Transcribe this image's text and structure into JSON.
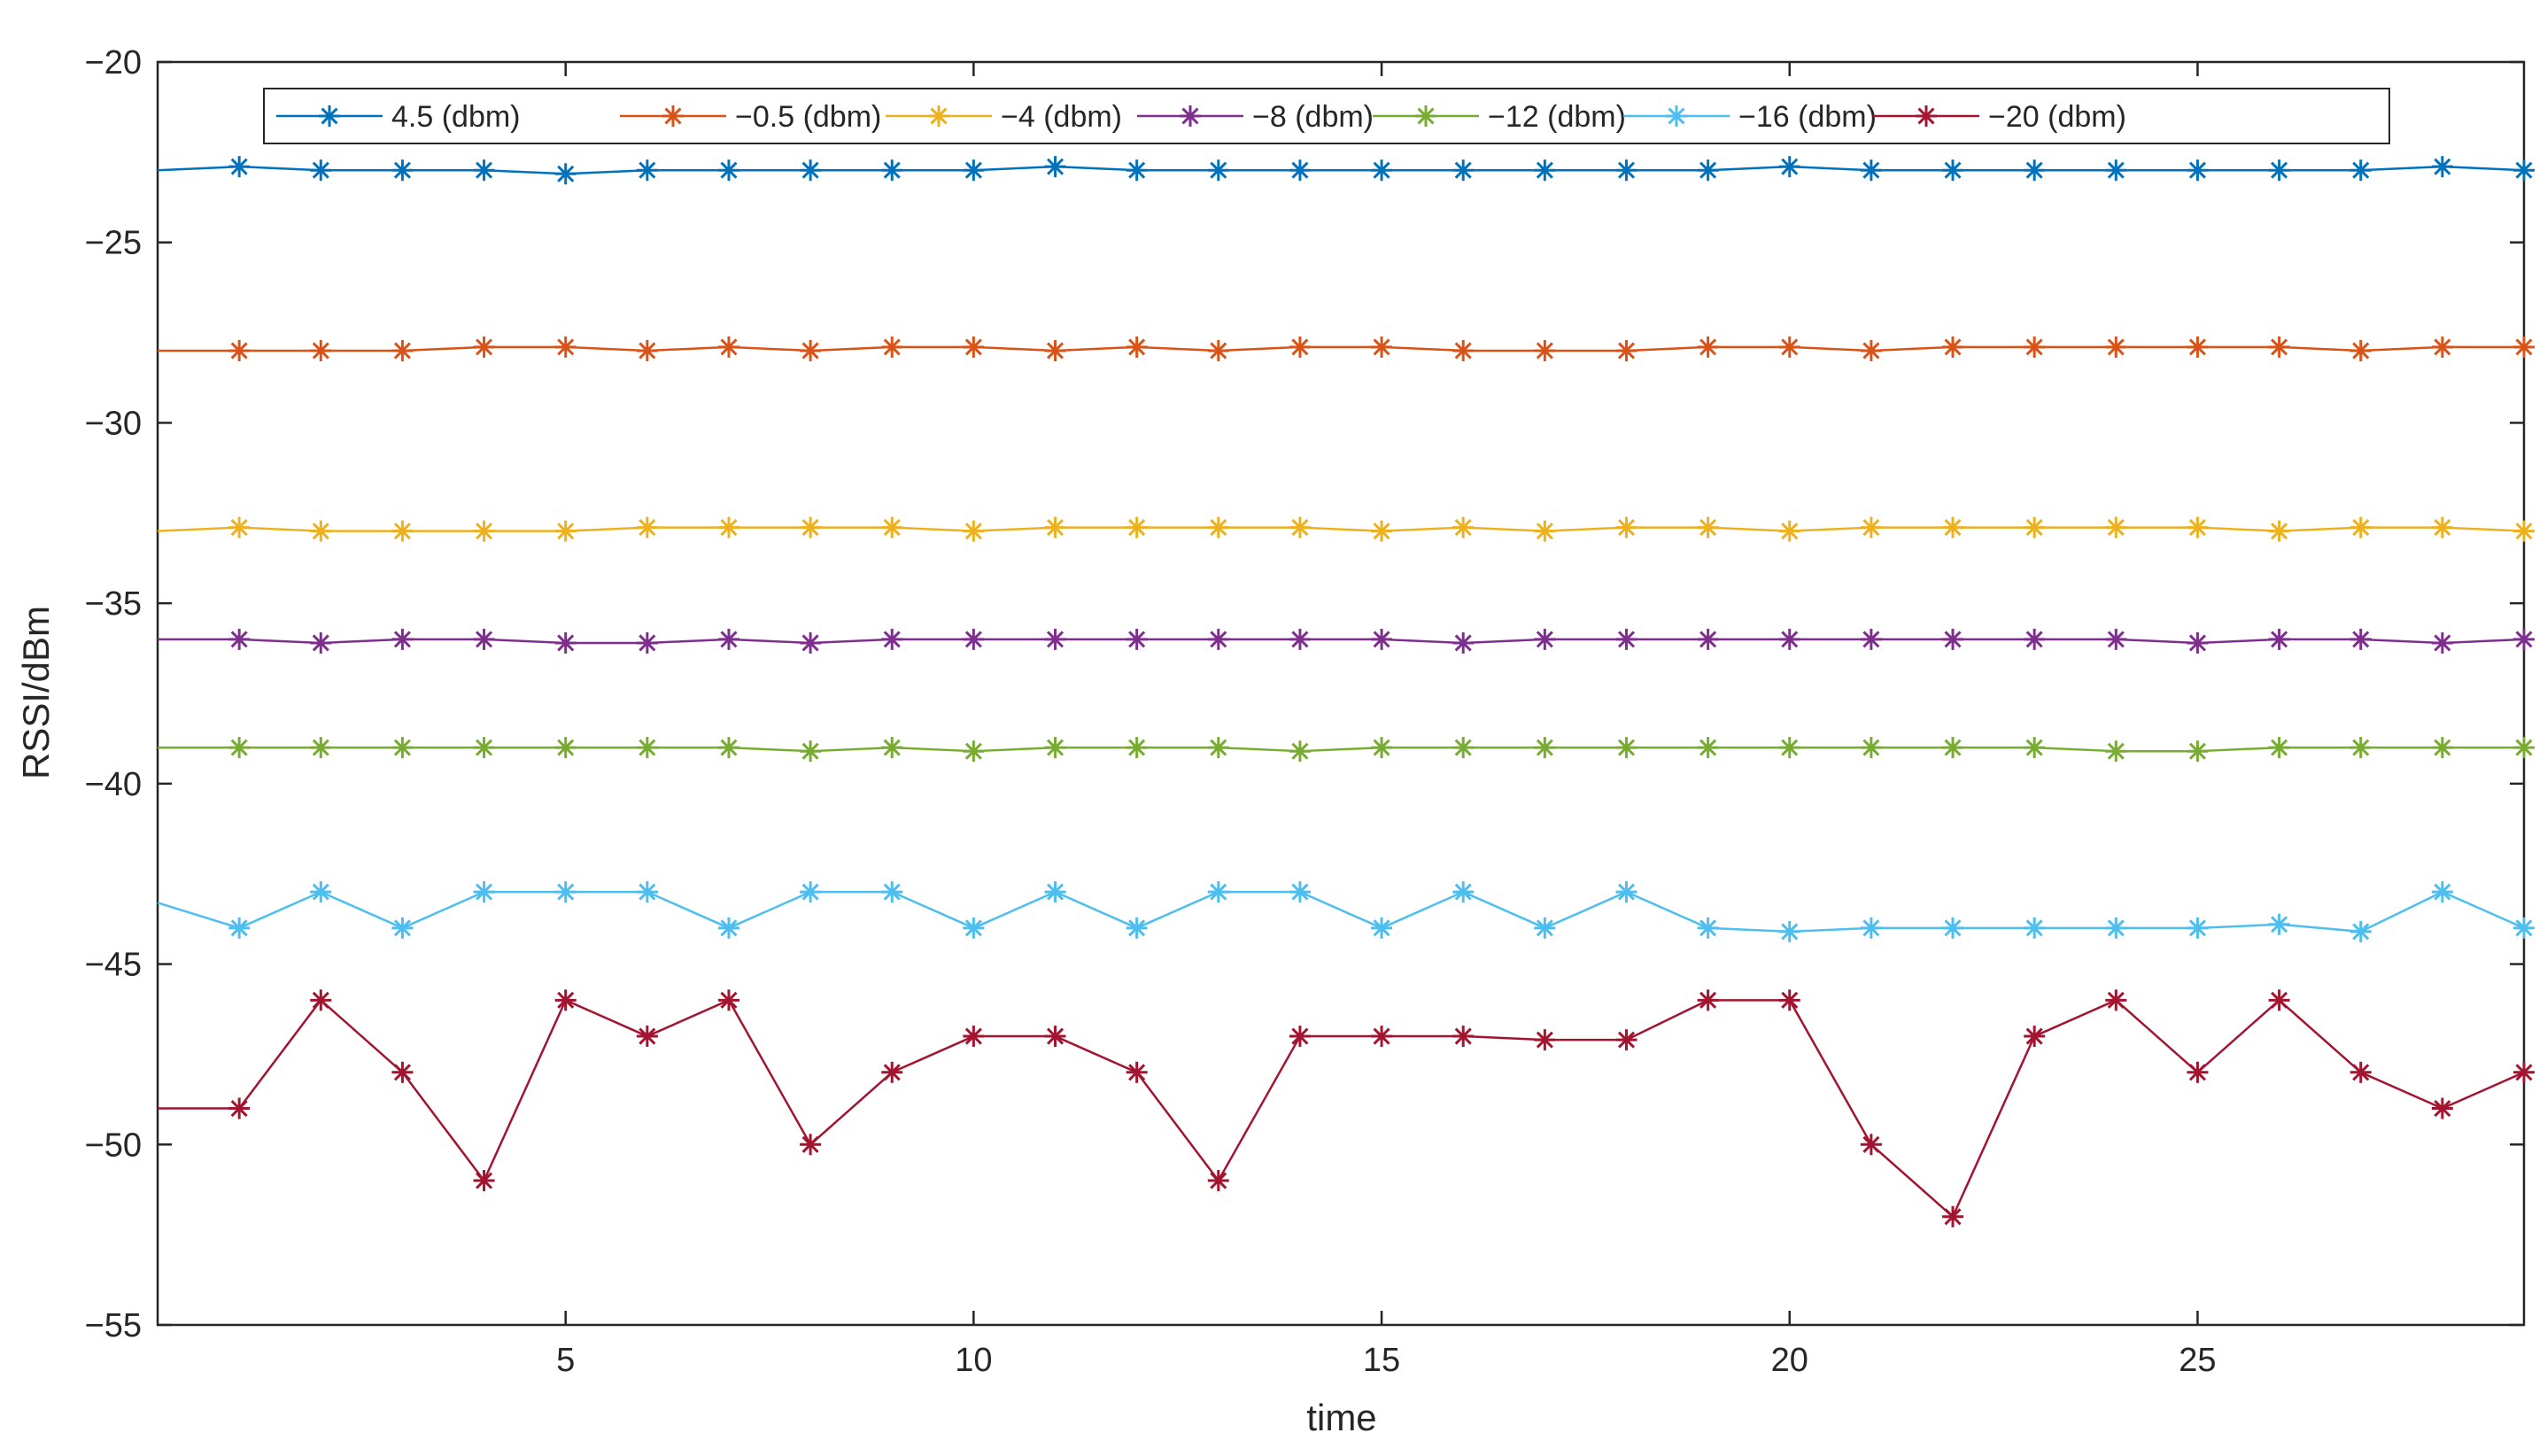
{
  "chart_data": {
    "type": "line",
    "title": "",
    "xlabel": "time",
    "ylabel": "RSSI/dBm",
    "xlim": [
      0,
      29
    ],
    "ylim": [
      -55,
      -20
    ],
    "xticks": [
      5,
      10,
      15,
      20,
      25
    ],
    "yticks": [
      -20,
      -25,
      -30,
      -35,
      -40,
      -45,
      -50,
      -55
    ],
    "ytick_labels": [
      "−20",
      "−25",
      "−30",
      "−35",
      "−40",
      "−45",
      "−50",
      "−55"
    ],
    "grid": false,
    "legend_position": "top",
    "marker": "asterisk",
    "x": [
      0,
      1,
      2,
      3,
      4,
      5,
      6,
      7,
      8,
      9,
      10,
      11,
      12,
      13,
      14,
      15,
      16,
      17,
      18,
      19,
      20,
      21,
      22,
      23,
      24,
      25,
      26,
      27,
      28,
      29
    ],
    "series": [
      {
        "name": "4.5 (dbm)",
        "color": "#0072BD",
        "values": [
          -23,
          -22.9,
          -23,
          -23,
          -23,
          -23.1,
          -23,
          -23,
          -23,
          -23,
          -23,
          -22.9,
          -23,
          -23,
          -23,
          -23,
          -23,
          -23,
          -23,
          -23,
          -22.9,
          -23,
          -23,
          -23,
          -23,
          -23,
          -23,
          -23,
          -22.9,
          -23
        ]
      },
      {
        "name": "−0.5 (dbm)",
        "color": "#D95319",
        "values": [
          -28,
          -28,
          -28,
          -28,
          -27.9,
          -27.9,
          -28,
          -27.9,
          -28,
          -27.9,
          -27.9,
          -28,
          -27.9,
          -28,
          -27.9,
          -27.9,
          -28,
          -28,
          -28,
          -27.9,
          -27.9,
          -28,
          -27.9,
          -27.9,
          -27.9,
          -27.9,
          -27.9,
          -28,
          -27.9,
          -27.9
        ]
      },
      {
        "name": "−4 (dbm)",
        "color": "#EDB120",
        "values": [
          -33,
          -32.9,
          -33,
          -33,
          -33,
          -33,
          -32.9,
          -32.9,
          -32.9,
          -32.9,
          -33,
          -32.9,
          -32.9,
          -32.9,
          -32.9,
          -33,
          -32.9,
          -33,
          -32.9,
          -32.9,
          -33,
          -32.9,
          -32.9,
          -32.9,
          -32.9,
          -32.9,
          -33,
          -32.9,
          -32.9,
          -33
        ]
      },
      {
        "name": "−8 (dbm)",
        "color": "#7E2F8E",
        "values": [
          -36,
          -36,
          -36.1,
          -36,
          -36,
          -36.1,
          -36.1,
          -36,
          -36.1,
          -36,
          -36,
          -36,
          -36,
          -36,
          -36,
          -36,
          -36.1,
          -36,
          -36,
          -36,
          -36,
          -36,
          -36,
          -36,
          -36,
          -36.1,
          -36,
          -36,
          -36.1,
          -36
        ]
      },
      {
        "name": "−12 (dbm)",
        "color": "#77AC30",
        "values": [
          -39,
          -39,
          -39,
          -39,
          -39,
          -39,
          -39,
          -39,
          -39.1,
          -39,
          -39.1,
          -39,
          -39,
          -39,
          -39.1,
          -39,
          -39,
          -39,
          -39,
          -39,
          -39,
          -39,
          -39,
          -39,
          -39.1,
          -39.1,
          -39,
          -39,
          -39,
          -39
        ]
      },
      {
        "name": "−16 (dbm)",
        "color": "#4DBEEE",
        "values": [
          -43.3,
          -44,
          -43,
          -44,
          -43,
          -43,
          -43,
          -44,
          -43,
          -43,
          -44,
          -43,
          -44,
          -43,
          -43,
          -44,
          -43,
          -44,
          -43,
          -44,
          -44.1,
          -44,
          -44,
          -44,
          -44,
          -44,
          -43.9,
          -44.1,
          -43,
          -44
        ]
      },
      {
        "name": "−20 (dbm)",
        "color": "#A2142F",
        "values": [
          -49,
          -49,
          -46,
          -48,
          -51,
          -46,
          -47,
          -46,
          -50,
          -48,
          -47,
          -47,
          -48,
          -51,
          -47,
          -47,
          -47,
          -47.1,
          -47.1,
          -46,
          -46,
          -50,
          -52,
          -47,
          -46,
          -48,
          -46,
          -48,
          -49,
          -48
        ]
      }
    ]
  }
}
